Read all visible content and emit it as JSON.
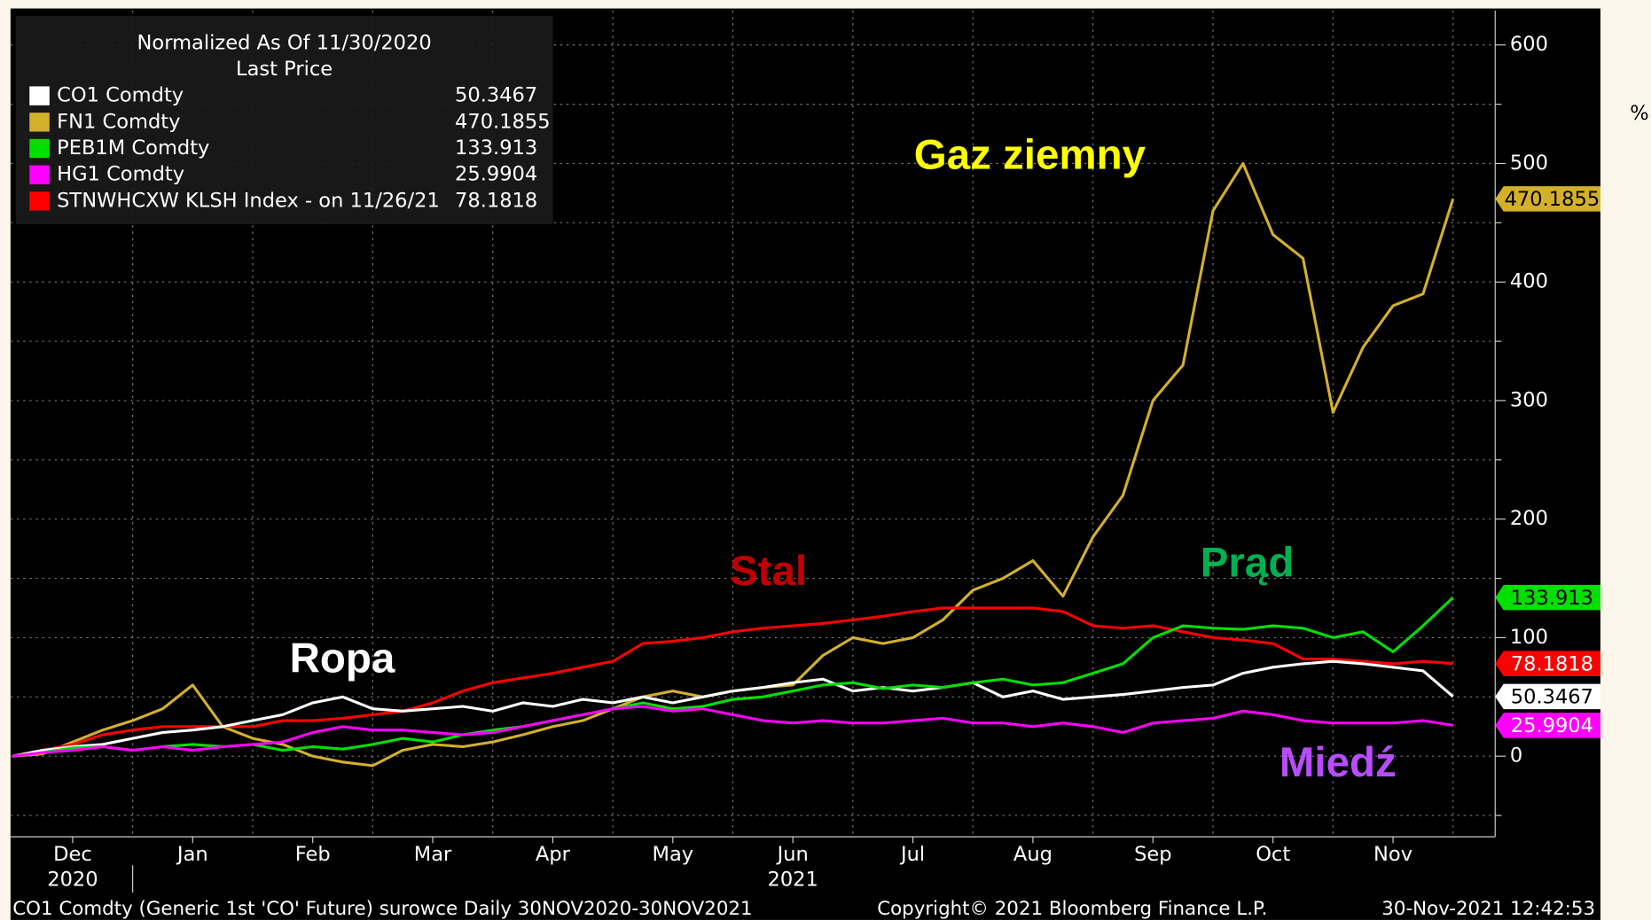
{
  "chart_data": {
    "type": "line",
    "title": "Normalized As Of 11/30/2020",
    "legend_title": "Last Price",
    "categories": [
      null,
      null,
      "Dec",
      null,
      null,
      null,
      "Jan",
      null,
      null,
      null,
      "Feb",
      null,
      null,
      null,
      "Mar",
      null,
      null,
      null,
      "Apr",
      null,
      null,
      null,
      "May",
      null,
      null,
      null,
      "Jun",
      null,
      null,
      null,
      "Jul",
      null,
      null,
      null,
      "Aug",
      null,
      null,
      null,
      "Sep",
      null,
      null,
      null,
      "Oct",
      null,
      null,
      null,
      "Nov",
      null,
      null
    ],
    "x_year_labels": [
      "2020",
      "2021"
    ],
    "ylim": [
      -68,
      629
    ],
    "yticks": [
      0,
      100,
      200,
      300,
      400,
      500,
      600
    ],
    "minor_yticks": [
      -50,
      50,
      150,
      250,
      350,
      450,
      550
    ],
    "grid": true,
    "unit_label": "%",
    "series": [
      {
        "name": "CO1 Comdty",
        "color": "#ffffff",
        "tag_text": "#000000",
        "values": [
          0,
          5,
          8,
          10,
          15,
          20,
          22,
          25,
          30,
          35,
          45,
          50,
          40,
          38,
          40,
          42,
          38,
          45,
          42,
          48,
          45,
          50,
          45,
          50,
          55,
          58,
          62,
          65,
          55,
          58,
          55,
          58,
          62,
          50,
          55,
          48,
          50,
          52,
          55,
          58,
          60,
          70,
          75,
          78,
          80,
          78,
          75,
          72,
          50.3467
        ]
      },
      {
        "name": "FN1 Comdty",
        "color": "#d4b02a",
        "tag_text": "#000000",
        "values": [
          0,
          2,
          12,
          22,
          30,
          40,
          60,
          25,
          15,
          10,
          0,
          -5,
          -8,
          5,
          10,
          8,
          12,
          18,
          25,
          30,
          40,
          50,
          55,
          50,
          55,
          58,
          60,
          85,
          100,
          95,
          100,
          115,
          140,
          150,
          165,
          135,
          185,
          220,
          300,
          330,
          460,
          500,
          440,
          420,
          290,
          345,
          380,
          390,
          470.1855
        ]
      },
      {
        "name": "PEB1M Comdty",
        "color": "#00e000",
        "tag_text": "#000000",
        "values": [
          0,
          3,
          7,
          8,
          5,
          8,
          10,
          8,
          10,
          5,
          8,
          6,
          10,
          15,
          12,
          18,
          22,
          25,
          30,
          35,
          40,
          45,
          40,
          42,
          48,
          50,
          55,
          60,
          62,
          57,
          60,
          58,
          62,
          65,
          60,
          62,
          70,
          78,
          100,
          110,
          108,
          107,
          110,
          108,
          100,
          105,
          88,
          110,
          133.913
        ]
      },
      {
        "name": "HG1 Comdty",
        "color": "#ff00ff",
        "tag_text": "#ffffff",
        "values": [
          0,
          3,
          5,
          8,
          5,
          8,
          5,
          8,
          10,
          12,
          20,
          25,
          22,
          22,
          20,
          18,
          20,
          25,
          30,
          35,
          40,
          42,
          38,
          40,
          35,
          30,
          28,
          30,
          28,
          28,
          30,
          32,
          28,
          28,
          25,
          28,
          25,
          20,
          28,
          30,
          32,
          38,
          35,
          30,
          28,
          28,
          28,
          30,
          25.9904
        ]
      },
      {
        "name": "STNWHCXW KLSH Index -  on 11/26/21",
        "color": "#ff0000",
        "tag_text": "#ffffff",
        "values": [
          0,
          5,
          10,
          18,
          22,
          25,
          25,
          25,
          25,
          30,
          30,
          32,
          35,
          38,
          45,
          55,
          62,
          66,
          70,
          75,
          80,
          95,
          97,
          100,
          105,
          108,
          110,
          112,
          115,
          118,
          122,
          125,
          125,
          125,
          125,
          122,
          110,
          108,
          110,
          105,
          100,
          98,
          95,
          82,
          82,
          80,
          78,
          80,
          78.1818
        ]
      }
    ],
    "annotations": [
      {
        "text": "Gaz ziemny",
        "color": "#ffff00"
      },
      {
        "text": "Stal",
        "color": "#c00000"
      },
      {
        "text": "Ropa",
        "color": "#ffffff"
      },
      {
        "text": "Prąd",
        "color": "#00b050"
      },
      {
        "text": "Miedź",
        "color": "#b84dff"
      }
    ],
    "footer": [
      "CO1 Comdty (Generic 1st 'CO' Future) surowce  Daily 30NOV2020-30NOV2021",
      "Copyright© 2021 Bloomberg Finance L.P.",
      "30-Nov-2021 12:42:53"
    ]
  }
}
